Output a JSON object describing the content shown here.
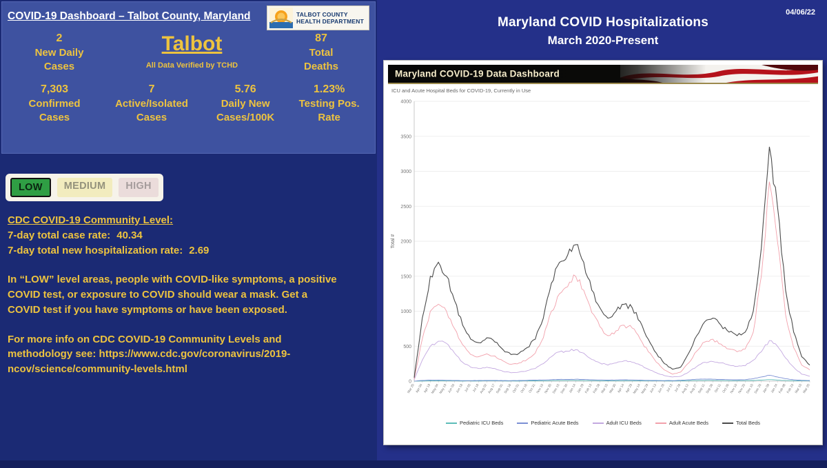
{
  "header": {
    "title": "COVID-19 Dashboard – Talbot County, Maryland",
    "logo_line1": "TALBOT COUNTY",
    "logo_line2": "HEALTH DEPARTMENT"
  },
  "stats": {
    "new_daily": {
      "value": "2",
      "label": "New Daily Cases"
    },
    "county_name": "Talbot",
    "verified_note": "All Data Verified by TCHD",
    "total_deaths": {
      "value": "87",
      "label": "Total Deaths"
    },
    "confirmed": {
      "value": "7,303",
      "label": "Confirmed Cases"
    },
    "active_isolated": {
      "value": "7",
      "label": "Active/Isolated Cases"
    },
    "daily_per_100k": {
      "value": "5.76",
      "label": "Daily New Cases/100K"
    },
    "testing_pos": {
      "value": "1.23%",
      "label": "Testing Pos. Rate"
    }
  },
  "community_level": {
    "levels": [
      "LOW",
      "MEDIUM",
      "HIGH"
    ],
    "active_level": "LOW",
    "heading": "CDC COVID-19 Community Level:",
    "case_rate_label": "7-day total case rate:",
    "case_rate_value": "40.34",
    "hosp_rate_label": "7-day total new hospitalization rate:",
    "hosp_rate_value": "2.69",
    "guidance": "In “LOW” level areas, people with COVID-like symptoms, a positive COVID test, or exposure to COVID should wear a mask. Get a COVID test if you have symptoms or have been exposed.",
    "more_info": "For more info on CDC COVID-19 Community Levels and methodology see: ",
    "url": "https://www.cdc.gov/coronavirus/2019-ncov/science/community-levels.html"
  },
  "right_panel": {
    "date": "04/06/22",
    "title_line1": "Maryland COVID Hospitalizations",
    "title_line2": "March 2020-Present",
    "dashboard_header": "Maryland COVID-19 Data Dashboard"
  },
  "colors": {
    "gold_text": "#edc33f",
    "low_green": "#2f9e44",
    "panel_blue": "#3e52a0",
    "page_navy": "#1b2a74"
  },
  "chart_data": {
    "type": "line",
    "title": "ICU and Acute Hospital Beds for COVID-19, Currently in Use",
    "ylabel": "Total #",
    "ylim": [
      0,
      4000
    ],
    "ytick_step": 500,
    "grid": true,
    "legend_position": "bottom",
    "x": [
      "Mar 20",
      "Apr 04",
      "Apr 19",
      "May 04",
      "May 19",
      "Jun 03",
      "Jun 18",
      "Jul 03",
      "Jul 18",
      "Aug 02",
      "Aug 17",
      "Sep 01",
      "Sep 16",
      "Oct 01",
      "Oct 16",
      "Oct 31",
      "Nov 15",
      "Nov 30",
      "Dec 15",
      "Dec 30",
      "Jan 14",
      "Jan 29",
      "Feb 13",
      "Feb 28",
      "Mar 15",
      "Mar 30",
      "Apr 14",
      "Apr 29",
      "May 14",
      "May 29",
      "Jun 13",
      "Jun 28",
      "Jul 13",
      "Jul 28",
      "Aug 12",
      "Aug 27",
      "Sep 11",
      "Sep 26",
      "Oct 11",
      "Oct 26",
      "Nov 10",
      "Nov 25",
      "Dec 10",
      "Dec 25",
      "Jan 09",
      "Jan 24",
      "Feb 08",
      "Feb 23",
      "Mar 10",
      "Mar 20"
    ],
    "series": [
      {
        "name": "Pediatric ICU Beds",
        "color": "#5bbcb8",
        "values": [
          1,
          3,
          5,
          5,
          4,
          4,
          3,
          3,
          3,
          4,
          4,
          3,
          3,
          3,
          4,
          5,
          6,
          8,
          9,
          9,
          10,
          9,
          7,
          6,
          5,
          6,
          7,
          6,
          5,
          4,
          4,
          3,
          3,
          4,
          7,
          9,
          10,
          10,
          9,
          8,
          7,
          8,
          10,
          15,
          22,
          15,
          9,
          6,
          4,
          3
        ]
      },
      {
        "name": "Pediatric Acute Beds",
        "color": "#7b8fd4",
        "values": [
          2,
          10,
          15,
          15,
          12,
          10,
          8,
          8,
          10,
          10,
          10,
          8,
          8,
          10,
          12,
          15,
          18,
          22,
          25,
          25,
          28,
          25,
          20,
          18,
          15,
          18,
          20,
          18,
          15,
          12,
          10,
          8,
          8,
          12,
          20,
          28,
          30,
          28,
          25,
          22,
          20,
          22,
          35,
          60,
          85,
          60,
          35,
          20,
          12,
          10
        ]
      },
      {
        "name": "Adult ICU Beds",
        "color": "#c3a8e0",
        "values": [
          20,
          300,
          500,
          570,
          540,
          400,
          270,
          200,
          180,
          200,
          180,
          140,
          120,
          130,
          150,
          180,
          250,
          350,
          420,
          430,
          450,
          400,
          310,
          260,
          230,
          260,
          290,
          270,
          230,
          170,
          120,
          80,
          60,
          70,
          130,
          210,
          270,
          280,
          260,
          230,
          210,
          220,
          300,
          420,
          580,
          500,
          330,
          200,
          100,
          70
        ]
      },
      {
        "name": "Adult Acute Beds",
        "color": "#f2a0ab",
        "values": [
          30,
          600,
          1000,
          1100,
          1000,
          750,
          520,
          380,
          350,
          390,
          360,
          290,
          240,
          260,
          310,
          400,
          620,
          1000,
          1250,
          1350,
          1500,
          1300,
          980,
          780,
          650,
          720,
          800,
          760,
          600,
          420,
          270,
          160,
          100,
          130,
          260,
          430,
          560,
          600,
          530,
          460,
          420,
          460,
          700,
          1500,
          2850,
          2000,
          950,
          480,
          230,
          160
        ]
      },
      {
        "name": "Total Beds",
        "color": "#4a4a4a",
        "values": [
          50,
          900,
          1500,
          1700,
          1500,
          1150,
          800,
          600,
          550,
          620,
          560,
          450,
          380,
          400,
          480,
          600,
          900,
          1400,
          1700,
          1800,
          1950,
          1700,
          1300,
          1050,
          900,
          1000,
          1100,
          1050,
          850,
          600,
          400,
          250,
          170,
          200,
          400,
          650,
          850,
          900,
          800,
          700,
          650,
          700,
          1000,
          1900,
          3350,
          2500,
          1300,
          700,
          350,
          230
        ]
      }
    ]
  }
}
